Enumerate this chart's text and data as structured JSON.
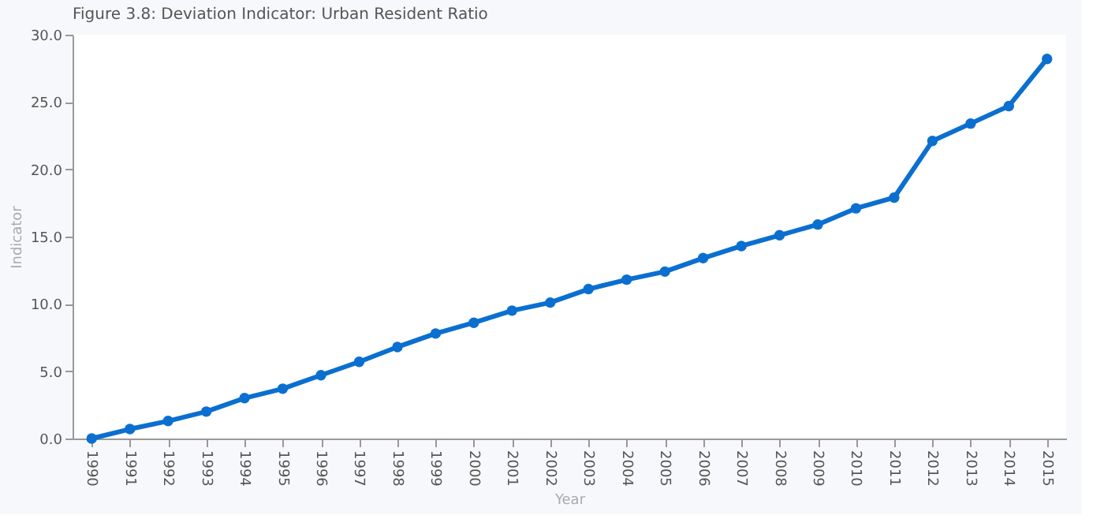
{
  "chart_data": {
    "type": "line",
    "title": "Figure 3.8: Deviation Indicator: Urban Resident Ratio",
    "xlabel": "Year",
    "ylabel": "Indicator",
    "categories": [
      "1990",
      "1991",
      "1992",
      "1993",
      "1994",
      "1995",
      "1996",
      "1997",
      "1998",
      "1999",
      "2000",
      "2001",
      "2002",
      "2003",
      "2004",
      "2005",
      "2006",
      "2007",
      "2008",
      "2009",
      "2010",
      "2011",
      "2012",
      "2013",
      "2014",
      "2015"
    ],
    "series": [
      {
        "color": "#0b6fd0",
        "values": [
          0.0,
          0.7,
          1.3,
          2.0,
          3.0,
          3.7,
          4.7,
          5.7,
          6.8,
          7.8,
          8.6,
          9.5,
          10.1,
          11.1,
          11.8,
          12.4,
          13.4,
          14.3,
          15.1,
          15.9,
          17.1,
          17.9,
          22.1,
          23.4,
          24.7,
          28.2
        ]
      }
    ],
    "ylim": [
      0,
      30
    ],
    "yticks": [
      {
        "value": 0,
        "label": "0.0"
      },
      {
        "value": 5,
        "label": "5.0"
      },
      {
        "value": 10,
        "label": "10.0"
      },
      {
        "value": 15,
        "label": "15.0"
      },
      {
        "value": 20,
        "label": "20.0"
      },
      {
        "value": 25,
        "label": "25.0"
      },
      {
        "value": 30,
        "label": "30.0"
      }
    ],
    "grid": false,
    "marker": "circle",
    "line_style": "solid"
  }
}
